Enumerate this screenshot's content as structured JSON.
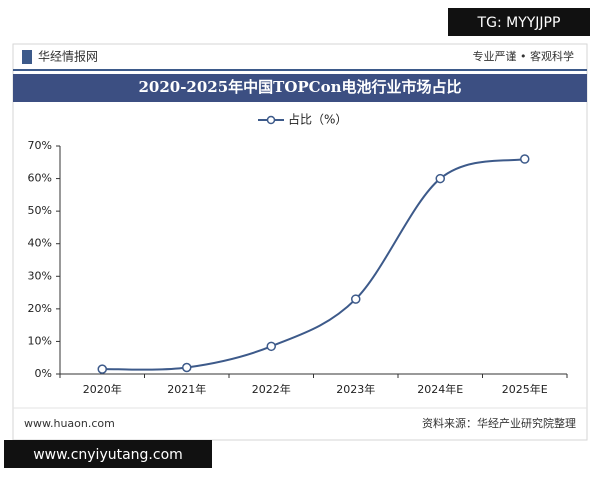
{
  "header": {
    "brand": "华经情报网",
    "slogan": "专业严谨 • 客观科学"
  },
  "footer": {
    "site": "www.huaon.com",
    "source": "资料来源：华经产业研究院整理"
  },
  "overlays": {
    "top": "TG: MYYJJPP",
    "bottom": "www.cnyiyutang.com"
  },
  "chart_data": {
    "type": "line",
    "title": "2020-2025年中国TOPCon电池行业市场占比",
    "categories": [
      "2020年",
      "2021年",
      "2022年",
      "2023年",
      "2024年E",
      "2025年E"
    ],
    "series": [
      {
        "name": "占比（%）",
        "color": "#3d5a8a",
        "values": [
          1.5,
          2,
          8.5,
          23,
          60,
          66
        ]
      }
    ],
    "ylim": [
      0,
      70
    ],
    "yticks": [
      {
        "value": 0,
        "label": "0%"
      },
      {
        "value": 10,
        "label": "10%"
      },
      {
        "value": 20,
        "label": "20%"
      },
      {
        "value": 30,
        "label": "30%"
      },
      {
        "value": 40,
        "label": "40%"
      },
      {
        "value": 50,
        "label": "50%"
      },
      {
        "value": 60,
        "label": "60%"
      },
      {
        "value": 70,
        "label": "70%"
      }
    ],
    "grid": false,
    "legend": "top"
  }
}
